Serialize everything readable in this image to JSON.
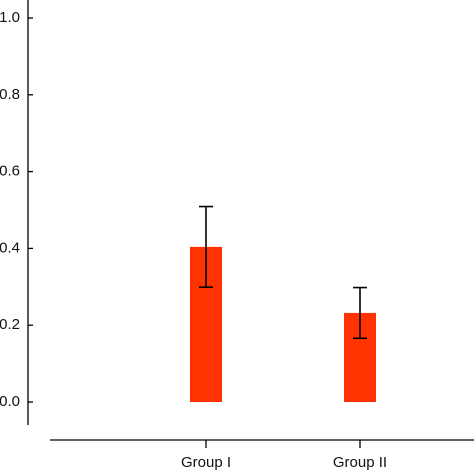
{
  "chart_data": {
    "type": "bar",
    "categories": [
      "Group I",
      "Group II"
    ],
    "values": [
      0.404,
      0.232
    ],
    "errors": [
      0.105,
      0.066
    ],
    "color": "#ff3300",
    "ylim": [
      0,
      1
    ],
    "yticks": [
      {
        "value": 0,
        "label": "0.0"
      },
      {
        "value": 0.2,
        "label": "0.2"
      },
      {
        "value": 0.4,
        "label": "0.4"
      },
      {
        "value": 0.6,
        "label": "0.6"
      },
      {
        "value": 0.8,
        "label": "0.8"
      },
      {
        "value": 1,
        "label": "1.0"
      }
    ]
  }
}
